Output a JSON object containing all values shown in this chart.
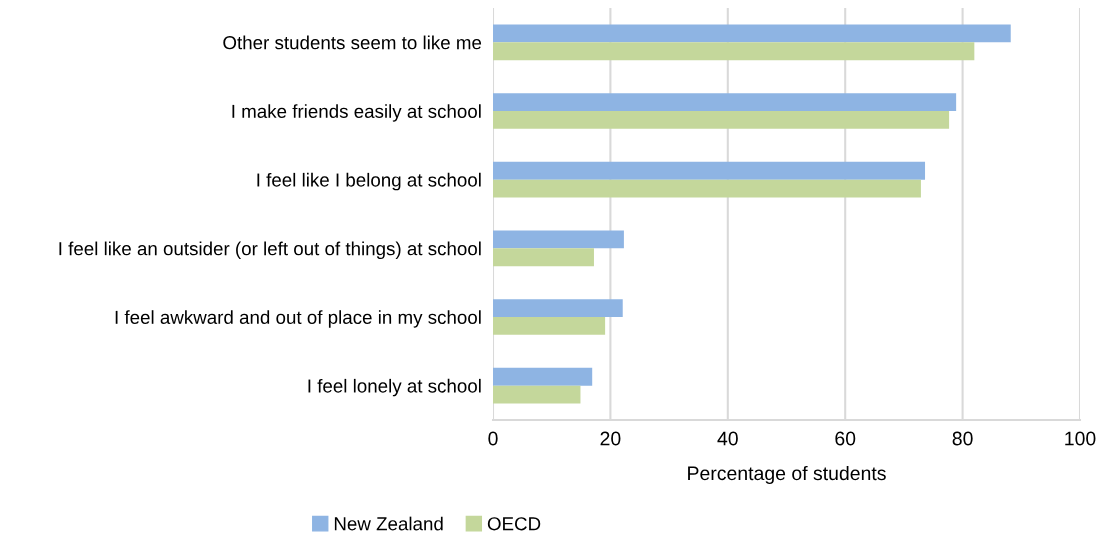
{
  "chart_data": {
    "type": "bar",
    "orientation": "horizontal",
    "xlabel": "Percentage of students",
    "categories": [
      "Other students seem to like me",
      "I make friends easily at school",
      "I feel like I belong at school",
      "I feel like an outsider (or left out of things) at school",
      "I feel awkward and out of place in my school",
      "I feel lonely at school"
    ],
    "series": [
      {
        "name": "New Zealand",
        "color": "#8eb4e3",
        "values": [
          88.2,
          78.9,
          73.6,
          22.3,
          22.1,
          16.9
        ]
      },
      {
        "name": "OECD",
        "color": "#c4d79b",
        "values": [
          82.0,
          77.7,
          72.9,
          17.2,
          19.1,
          14.9
        ]
      }
    ],
    "xlim": [
      0,
      100
    ],
    "xticks": [
      0,
      20,
      40,
      60,
      80,
      100
    ],
    "grid": "x",
    "legend": "bottom"
  }
}
